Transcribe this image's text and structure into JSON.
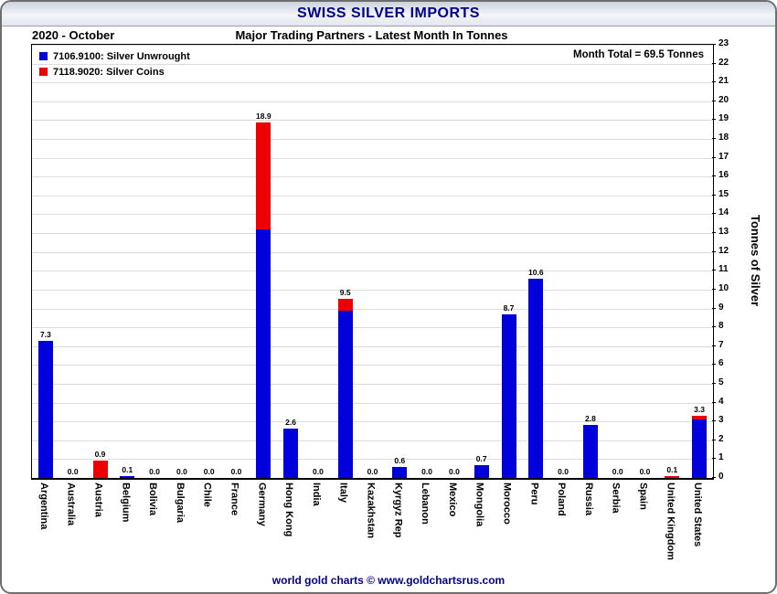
{
  "chart_data": {
    "type": "bar",
    "stacked": true,
    "title": "SWISS SILVER IMPORTS",
    "period_label": "2020 - October",
    "subtitle": "Major Trading Partners - Latest Month In Tonnes",
    "month_total_label": "Month Total = 69.5 Tonnes",
    "month_total_tonnes": 69.5,
    "ylabel": "Tonnes of Silver",
    "ylim": [
      0,
      23
    ],
    "grid": true,
    "legend_position": "top-left",
    "footer": "world gold charts © www.goldchartsrus.com",
    "categories": [
      "Argentina",
      "Australia",
      "Austria",
      "Belgium",
      "Bolivia",
      "Bulgaria",
      "Chile",
      "France",
      "Germany",
      "Hong Kong",
      "India",
      "Italy",
      "Kazakhstan",
      "Kyrgyz Rep",
      "Lebanon",
      "Mexico",
      "Mongolia",
      "Morocco",
      "Peru",
      "Poland",
      "Russia",
      "Serbia",
      "Spain",
      "United Kingdom",
      "United States"
    ],
    "series": [
      {
        "name": "7106.9100: Silver Unwrought",
        "color": "#0000dd",
        "values": [
          7.3,
          0.0,
          0.0,
          0.1,
          0.0,
          0.0,
          0.0,
          0.0,
          13.2,
          2.6,
          0.0,
          8.9,
          0.0,
          0.6,
          0.0,
          0.0,
          0.7,
          8.7,
          10.6,
          0.0,
          2.8,
          0.0,
          0.0,
          0.0,
          3.1
        ]
      },
      {
        "name": "7118.9020: Silver Coins",
        "color": "#ee0000",
        "values": [
          0.0,
          0.0,
          0.9,
          0.0,
          0.0,
          0.0,
          0.0,
          0.0,
          5.7,
          0.0,
          0.0,
          0.6,
          0.0,
          0.0,
          0.0,
          0.0,
          0.0,
          0.0,
          0.0,
          0.0,
          0.0,
          0.0,
          0.0,
          0.1,
          0.2
        ]
      }
    ],
    "bar_labels": [
      "7.3",
      "0.0",
      "0.9",
      "0.1",
      "0.0",
      "0.0",
      "0.0",
      "0.0",
      "18.9",
      "2.6",
      "0.0",
      "9.5",
      "0.0",
      "0.6",
      "0.0",
      "0.0",
      "0.7",
      "8.7",
      "10.6",
      "0.0",
      "2.8",
      "0.0",
      "0.0",
      "0.1",
      "3.3"
    ]
  }
}
